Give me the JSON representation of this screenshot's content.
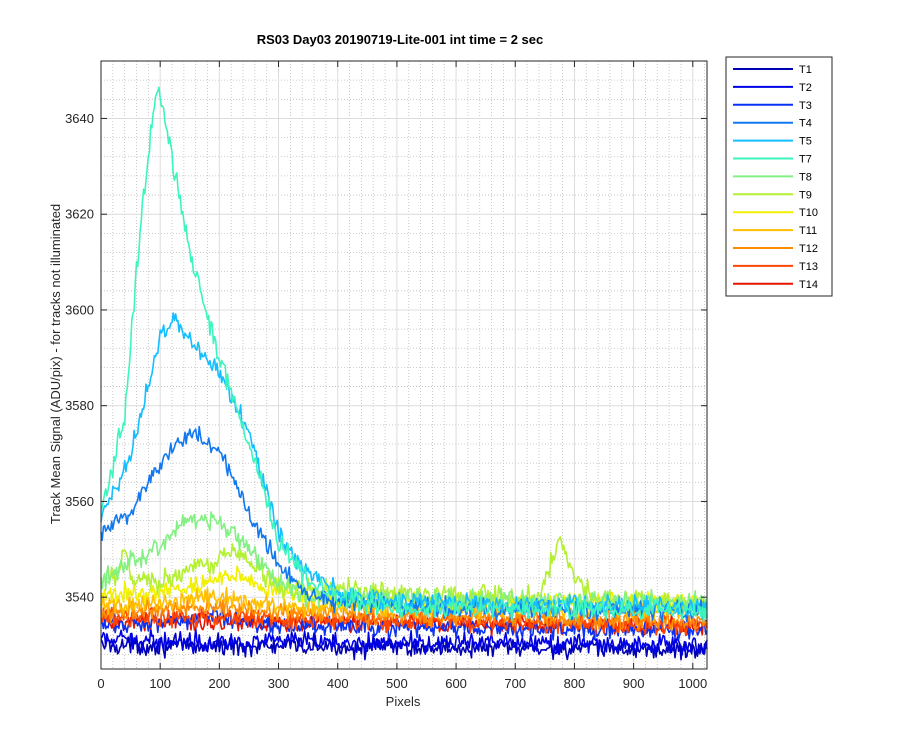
{
  "chart_data": {
    "type": "line",
    "title": "RS03 Day03 20190719-Lite-001 int time = 2 sec",
    "xlabel": "Pixels",
    "ylabel": "Track Mean Signal (ADU/pix) - for tracks not illuminated",
    "xlim": [
      0,
      1024
    ],
    "ylim": [
      3525,
      3652
    ],
    "x_ticks": [
      0,
      100,
      200,
      300,
      400,
      500,
      600,
      700,
      800,
      900,
      1000
    ],
    "y_ticks": [
      3540,
      3560,
      3580,
      3600,
      3620,
      3640
    ],
    "x_tick_labels": [
      "0",
      "100",
      "200",
      "300",
      "400",
      "500",
      "600",
      "700",
      "800",
      "900",
      "1000"
    ],
    "y_tick_labels": [
      "3540",
      "3560",
      "3580",
      "3600",
      "3620",
      "3640"
    ],
    "grid": true,
    "minor_grid": true,
    "legend_position": "outside-top-right",
    "series": [
      {
        "name": "T1",
        "color": "#0000b4",
        "noise": 1.5,
        "x": [
          0,
          1024
        ],
        "y": [
          3530,
          3529
        ]
      },
      {
        "name": "T2",
        "color": "#0000e6",
        "noise": 1.5,
        "x": [
          0,
          1024
        ],
        "y": [
          3531,
          3530
        ]
      },
      {
        "name": "T3",
        "color": "#0a32f5",
        "noise": 1.5,
        "x": [
          0,
          100,
          200,
          300,
          1024
        ],
        "y": [
          3534,
          3535,
          3536,
          3534,
          3533
        ]
      },
      {
        "name": "T4",
        "color": "#1278f0",
        "noise": 1.6,
        "x": [
          0,
          50,
          100,
          150,
          200,
          250,
          300,
          350,
          400,
          500,
          1024
        ],
        "y": [
          3553,
          3558,
          3568,
          3575,
          3570,
          3558,
          3547,
          3541,
          3539,
          3538,
          3537
        ]
      },
      {
        "name": "T5",
        "color": "#14beff",
        "noise": 1.6,
        "x": [
          0,
          50,
          100,
          125,
          150,
          200,
          250,
          300,
          350,
          400,
          500,
          1024
        ],
        "y": [
          3556,
          3570,
          3594,
          3598,
          3594,
          3587,
          3575,
          3553,
          3545,
          3541,
          3539,
          3538
        ]
      },
      {
        "name": "T7",
        "color": "#3cf5be",
        "noise": 1.7,
        "x": [
          0,
          40,
          70,
          95,
          120,
          150,
          200,
          250,
          300,
          350,
          400,
          500,
          1024
        ],
        "y": [
          3557,
          3578,
          3622,
          3648,
          3632,
          3612,
          3590,
          3572,
          3552,
          3543,
          3540,
          3538,
          3537
        ]
      },
      {
        "name": "T8",
        "color": "#82f082",
        "noise": 1.6,
        "x": [
          0,
          100,
          150,
          200,
          250,
          300,
          350,
          1024
        ],
        "y": [
          3543,
          3551,
          3557,
          3556,
          3550,
          3543,
          3540,
          3539
        ]
      },
      {
        "name": "T9",
        "color": "#b4f032",
        "noise": 1.6,
        "x": [
          0,
          30,
          40,
          50,
          100,
          230,
          300,
          700,
          740,
          775,
          800,
          830,
          1024
        ],
        "y": [
          3543,
          3544,
          3550,
          3544,
          3543,
          3550,
          3542,
          3540,
          3540,
          3552,
          3545,
          3540,
          3538
        ]
      },
      {
        "name": "T10",
        "color": "#f0f000",
        "noise": 1.5,
        "x": [
          0,
          150,
          230,
          300,
          400,
          1024
        ],
        "y": [
          3540,
          3542,
          3545,
          3541,
          3539,
          3539
        ]
      },
      {
        "name": "T11",
        "color": "#ffbe00",
        "noise": 1.5,
        "x": [
          0,
          200,
          300,
          1024
        ],
        "y": [
          3538,
          3540,
          3538,
          3537
        ]
      },
      {
        "name": "T12",
        "color": "#ff8c00",
        "noise": 1.5,
        "x": [
          0,
          200,
          300,
          1024
        ],
        "y": [
          3537,
          3538,
          3537,
          3535
        ]
      },
      {
        "name": "T13",
        "color": "#ff4600",
        "noise": 1.4,
        "x": [
          0,
          1024
        ],
        "y": [
          3536,
          3534
        ]
      },
      {
        "name": "T14",
        "color": "#e61400",
        "noise": 1.4,
        "x": [
          0,
          1024
        ],
        "y": [
          3535,
          3534
        ]
      }
    ]
  }
}
